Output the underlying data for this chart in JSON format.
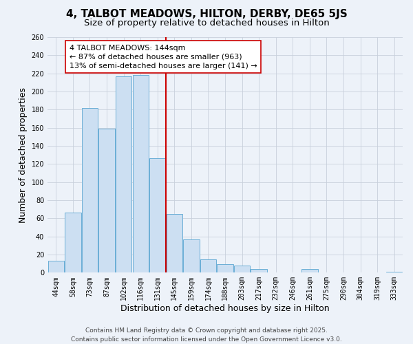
{
  "title": "4, TALBOT MEADOWS, HILTON, DERBY, DE65 5JS",
  "subtitle": "Size of property relative to detached houses in Hilton",
  "xlabel": "Distribution of detached houses by size in Hilton",
  "ylabel": "Number of detached properties",
  "bar_labels": [
    "44sqm",
    "58sqm",
    "73sqm",
    "87sqm",
    "102sqm",
    "116sqm",
    "131sqm",
    "145sqm",
    "159sqm",
    "174sqm",
    "188sqm",
    "203sqm",
    "217sqm",
    "232sqm",
    "246sqm",
    "261sqm",
    "275sqm",
    "290sqm",
    "304sqm",
    "319sqm",
    "333sqm"
  ],
  "bar_values": [
    13,
    66,
    182,
    159,
    217,
    218,
    126,
    65,
    37,
    15,
    9,
    8,
    4,
    0,
    0,
    4,
    0,
    0,
    0,
    0,
    1
  ],
  "bar_color": "#ccdff2",
  "bar_edge_color": "#6aaed6",
  "vline_color": "#cc0000",
  "annotation_line1": "4 TALBOT MEADOWS: 144sqm",
  "annotation_line2": "← 87% of detached houses are smaller (963)",
  "annotation_line3": "13% of semi-detached houses are larger (141) →",
  "annotation_box_color": "white",
  "annotation_box_edge": "#cc0000",
  "ylim": [
    0,
    260
  ],
  "yticks": [
    0,
    20,
    40,
    60,
    80,
    100,
    120,
    140,
    160,
    180,
    200,
    220,
    240,
    260
  ],
  "background_color": "#edf2f9",
  "grid_color": "#c8d0dc",
  "footer_text": "Contains HM Land Registry data © Crown copyright and database right 2025.\nContains public sector information licensed under the Open Government Licence v3.0.",
  "title_fontsize": 11,
  "subtitle_fontsize": 9.5,
  "xlabel_fontsize": 9,
  "ylabel_fontsize": 9,
  "annotation_fontsize": 8,
  "footer_fontsize": 6.5,
  "tick_fontsize": 7
}
